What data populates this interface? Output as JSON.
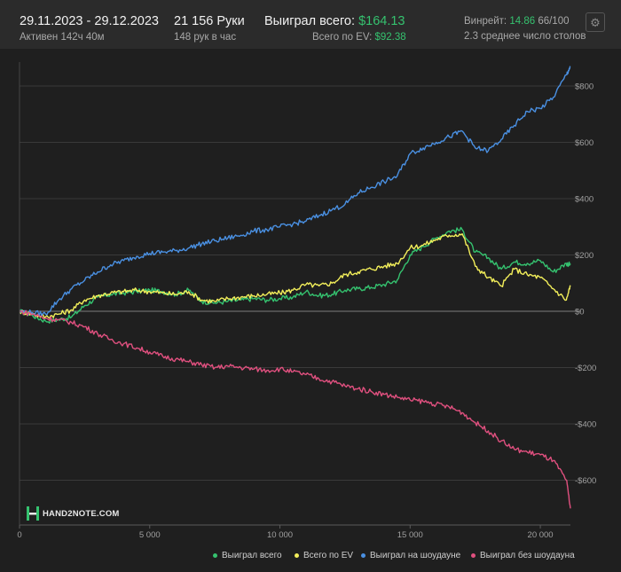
{
  "header": {
    "date_range": "29.11.2023 - 29.12.2023",
    "active_label": "Активен 142ч 40м",
    "hands": "21 156 Руки",
    "hands_per_hour": "148 рук в час",
    "won_total_label": "Выиграл всего:",
    "won_total_value": "$164.13",
    "ev_label": "Всего по EV:",
    "ev_value": "$92.38",
    "winrate_label": "Винрейт:",
    "winrate_value": "14.86",
    "winrate_hands": "66/100",
    "avg_tables": "2.3 среднее число столов",
    "settings_icon": "gear-icon"
  },
  "logo": {
    "text": "HAND2NOTE.COM"
  },
  "colors": {
    "won_total": "#35c26f",
    "ev": "#f2ee5a",
    "showdown": "#4a90e2",
    "non_showdown": "#e0507f"
  },
  "chart_data": {
    "type": "line",
    "xlim": [
      0,
      21156
    ],
    "ylim": [
      -700,
      880
    ],
    "x_ticks": [
      0,
      5000,
      10000,
      15000,
      20000
    ],
    "x_tick_labels": [
      "0",
      "5 000",
      "10 000",
      "15 000",
      "20 000"
    ],
    "y_ticks": [
      800,
      600,
      400,
      200,
      0,
      -200,
      -400,
      -600
    ],
    "y_tick_labels": [
      "$800",
      "$600",
      "$400",
      "$200",
      "$0",
      "-$200",
      "-$400",
      "-$600"
    ],
    "grid": true,
    "legend_position": "bottom-right",
    "x": [
      0,
      500,
      1000,
      1500,
      2000,
      2500,
      3000,
      3500,
      4000,
      4500,
      5000,
      5500,
      6000,
      6500,
      7000,
      7500,
      8000,
      8500,
      9000,
      9500,
      10000,
      10500,
      11000,
      11500,
      12000,
      12500,
      13000,
      13500,
      14000,
      14500,
      15000,
      15500,
      16000,
      16500,
      17000,
      17500,
      18000,
      18500,
      19000,
      19500,
      20000,
      20500,
      21000,
      21156
    ],
    "series": [
      {
        "name": "Выиграл всего",
        "color": "#35c26f",
        "values": [
          0,
          -15,
          -35,
          -30,
          -20,
          20,
          50,
          60,
          65,
          70,
          75,
          70,
          60,
          75,
          35,
          30,
          35,
          40,
          45,
          40,
          45,
          50,
          70,
          55,
          60,
          75,
          80,
          85,
          95,
          110,
          200,
          230,
          260,
          285,
          290,
          210,
          190,
          150,
          175,
          170,
          180,
          140,
          170,
          165
        ]
      },
      {
        "name": "Всего по EV",
        "color": "#f2ee5a",
        "values": [
          0,
          -10,
          -20,
          -10,
          5,
          40,
          55,
          65,
          70,
          75,
          70,
          65,
          60,
          70,
          40,
          35,
          45,
          50,
          55,
          60,
          65,
          75,
          95,
          90,
          100,
          130,
          140,
          150,
          160,
          170,
          225,
          235,
          255,
          270,
          275,
          160,
          120,
          90,
          150,
          130,
          120,
          80,
          40,
          92
        ]
      },
      {
        "name": "Выиграл на шоудауне",
        "color": "#4a90e2",
        "values": [
          0,
          -5,
          -10,
          40,
          80,
          110,
          140,
          165,
          180,
          195,
          205,
          210,
          215,
          225,
          240,
          250,
          260,
          270,
          285,
          290,
          300,
          310,
          320,
          340,
          360,
          380,
          420,
          440,
          460,
          480,
          560,
          580,
          600,
          620,
          640,
          580,
          570,
          610,
          660,
          710,
          720,
          760,
          840,
          870
        ]
      },
      {
        "name": "Выиграл без шоудауна",
        "color": "#e0507f",
        "values": [
          0,
          -10,
          -25,
          -30,
          -40,
          -55,
          -80,
          -100,
          -115,
          -130,
          -145,
          -160,
          -170,
          -180,
          -190,
          -200,
          -195,
          -200,
          -205,
          -210,
          -205,
          -215,
          -225,
          -240,
          -250,
          -265,
          -275,
          -285,
          -295,
          -305,
          -315,
          -320,
          -330,
          -340,
          -360,
          -395,
          -425,
          -460,
          -490,
          -500,
          -510,
          -530,
          -600,
          -700
        ]
      }
    ]
  }
}
